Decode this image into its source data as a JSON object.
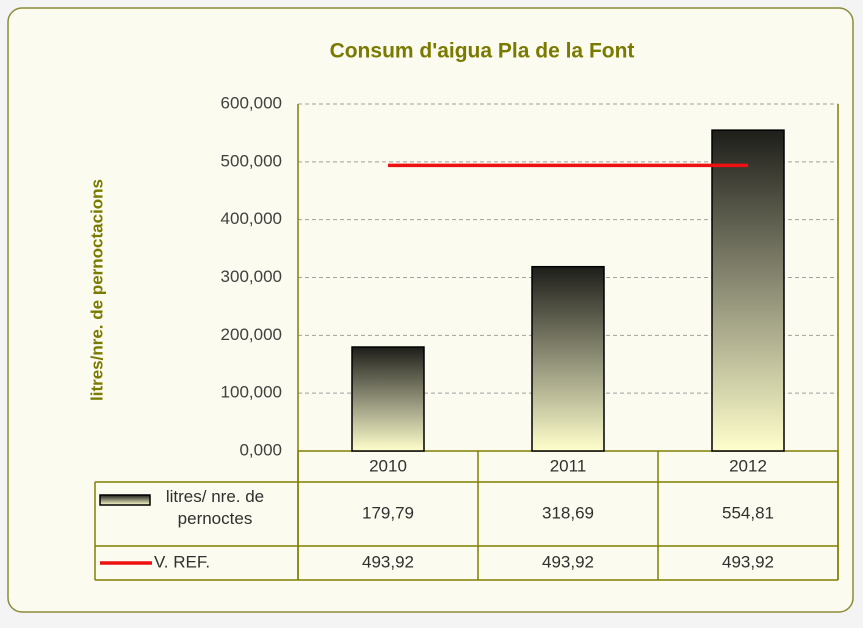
{
  "chart_data": {
    "type": "bar",
    "title": "Consum d'aigua Pla de la Font",
    "y_label": "litres/nre. de pernoctacions",
    "categories": [
      "2010",
      "2011",
      "2012"
    ],
    "series": [
      {
        "name": "litres/ nre. de pernoctes",
        "type": "bar",
        "color": "#222222",
        "values": [
          179.79,
          318.69,
          554.81
        ],
        "value_labels": [
          "179,79",
          "318,69",
          "554,81"
        ]
      },
      {
        "name": "V. REF.",
        "type": "line",
        "color": "#ee1111",
        "values": [
          493.92,
          493.92,
          493.92
        ],
        "value_labels": [
          "493,92",
          "493,92",
          "493,92"
        ]
      }
    ],
    "ylim": [
      0,
      600
    ],
    "yticks": [
      {
        "value": 0,
        "label": "0,000"
      },
      {
        "value": 100,
        "label": "100,000"
      },
      {
        "value": 200,
        "label": "200,000"
      },
      {
        "value": 300,
        "label": "300,000"
      },
      {
        "value": 400,
        "label": "400,000"
      },
      {
        "value": 500,
        "label": "500,000"
      },
      {
        "value": 600,
        "label": "600,000"
      }
    ],
    "grid": true
  }
}
